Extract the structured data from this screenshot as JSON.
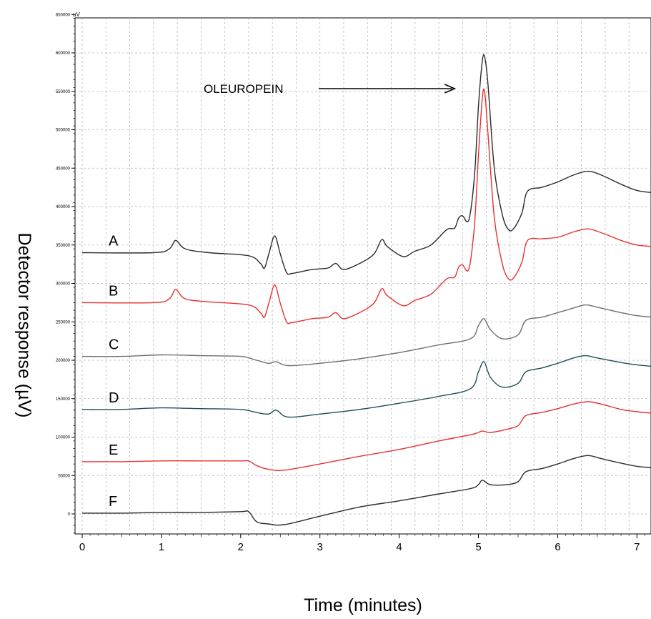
{
  "chart_data": {
    "type": "line",
    "ylabel": "Detector response (µV)",
    "xlabel": "Time (minutes)",
    "y_unit": "uV",
    "xlim": [
      0,
      7.2
    ],
    "ylim": [
      -30000,
      650000
    ],
    "x_ticks": [
      0,
      1,
      2,
      3,
      4,
      5,
      6,
      7
    ],
    "y_ticks": [
      0,
      50000,
      100000,
      150000,
      200000,
      250000,
      300000,
      350000,
      400000,
      450000,
      500000,
      550000,
      600000,
      650000
    ],
    "grid": true,
    "annotation": {
      "text": "OLEUROPEIN",
      "arrow_to_x": 4.7
    },
    "series": [
      {
        "name": "A",
        "color": "#2b2b2b",
        "x": [
          0,
          0.9,
          1.1,
          1.18,
          1.3,
          1.6,
          2.1,
          2.25,
          2.3,
          2.36,
          2.43,
          2.5,
          2.58,
          2.65,
          2.9,
          3.1,
          3.2,
          3.3,
          3.5,
          3.68,
          3.78,
          3.85,
          4.05,
          4.2,
          4.4,
          4.6,
          4.7,
          4.75,
          4.8,
          4.88,
          4.95,
          5.0,
          5.05,
          5.08,
          5.12,
          5.2,
          5.3,
          5.38,
          5.45,
          5.55,
          5.62,
          5.8,
          6.0,
          6.2,
          6.38,
          6.55,
          6.8,
          7.0,
          7.2
        ],
        "y": [
          340000,
          340000,
          345000,
          356000,
          345000,
          340000,
          336000,
          326000,
          320000,
          340000,
          362000,
          338000,
          314000,
          313000,
          318000,
          320000,
          326000,
          318000,
          326000,
          338000,
          357000,
          348000,
          335000,
          342000,
          350000,
          370000,
          372000,
          385000,
          388000,
          383000,
          440000,
          530000,
          590000,
          594000,
          560000,
          450000,
          390000,
          370000,
          372000,
          392000,
          420000,
          425000,
          432000,
          441000,
          446000,
          441000,
          429000,
          421000,
          418000
        ]
      },
      {
        "name": "B",
        "color": "#e8302f",
        "x": [
          0,
          0.9,
          1.1,
          1.18,
          1.3,
          1.6,
          2.1,
          2.25,
          2.3,
          2.36,
          2.43,
          2.5,
          2.58,
          2.65,
          2.9,
          3.1,
          3.2,
          3.3,
          3.5,
          3.68,
          3.78,
          3.85,
          4.05,
          4.2,
          4.4,
          4.6,
          4.7,
          4.75,
          4.8,
          4.88,
          4.95,
          5.0,
          5.05,
          5.08,
          5.12,
          5.2,
          5.3,
          5.38,
          5.45,
          5.55,
          5.62,
          5.8,
          6.0,
          6.2,
          6.38,
          6.55,
          6.8,
          7.0,
          7.2
        ],
        "y": [
          275000,
          275000,
          280000,
          292000,
          280000,
          276000,
          272000,
          262000,
          256000,
          276000,
          298000,
          274000,
          250000,
          249000,
          254000,
          256000,
          262000,
          254000,
          262000,
          274000,
          293000,
          284000,
          271000,
          278000,
          286000,
          306000,
          308000,
          321000,
          324000,
          319000,
          376000,
          466000,
          542000,
          548000,
          496000,
          386000,
          326000,
          306000,
          308000,
          328000,
          356000,
          358000,
          360000,
          367000,
          371000,
          366000,
          356000,
          350000,
          348000
        ]
      },
      {
        "name": "C",
        "color": "#6e6e6e",
        "x": [
          0,
          0.5,
          1.0,
          1.5,
          2.0,
          2.2,
          2.35,
          2.45,
          2.6,
          3.0,
          3.5,
          4.0,
          4.5,
          4.9,
          5.0,
          5.07,
          5.15,
          5.3,
          5.5,
          5.6,
          5.8,
          6.0,
          6.2,
          6.35,
          6.5,
          6.8,
          7.0,
          7.2
        ],
        "y": [
          205000,
          205000,
          207000,
          206000,
          205000,
          200000,
          196000,
          198000,
          193000,
          196000,
          202000,
          210000,
          220000,
          228000,
          245000,
          254000,
          240000,
          228000,
          233000,
          252000,
          256000,
          262000,
          268000,
          272000,
          269000,
          262000,
          258000,
          256000
        ]
      },
      {
        "name": "D",
        "color": "#1e4d52",
        "x": [
          0,
          0.5,
          1.0,
          1.5,
          2.0,
          2.2,
          2.35,
          2.45,
          2.6,
          3.0,
          3.5,
          4.0,
          4.5,
          4.9,
          5.0,
          5.07,
          5.15,
          5.3,
          5.5,
          5.6,
          5.8,
          6.0,
          6.2,
          6.35,
          6.5,
          6.8,
          7.0,
          7.2
        ],
        "y": [
          136000,
          136000,
          138000,
          137000,
          136000,
          132000,
          130000,
          135000,
          126000,
          130000,
          136000,
          144000,
          153000,
          163000,
          185000,
          198000,
          178000,
          165000,
          170000,
          185000,
          190000,
          196000,
          203000,
          206000,
          203000,
          197000,
          194000,
          192000
        ]
      },
      {
        "name": "E",
        "color": "#e8302f",
        "x": [
          0,
          0.5,
          1.0,
          1.5,
          2.0,
          2.1,
          2.2,
          2.35,
          2.55,
          3.0,
          3.5,
          4.0,
          4.5,
          4.9,
          5.0,
          5.05,
          5.15,
          5.35,
          5.5,
          5.6,
          5.8,
          6.0,
          6.2,
          6.38,
          6.55,
          6.8,
          7.0,
          7.2
        ],
        "y": [
          68000,
          68000,
          69000,
          69000,
          69000,
          69000,
          63000,
          58000,
          57000,
          65000,
          75000,
          84000,
          95000,
          103000,
          106000,
          108000,
          106000,
          110000,
          115000,
          128000,
          132000,
          137000,
          143000,
          146000,
          143000,
          136000,
          133000,
          131000
        ]
      },
      {
        "name": "F",
        "color": "#2b2b2b",
        "x": [
          0,
          0.5,
          1.0,
          1.5,
          2.0,
          2.1,
          2.2,
          2.35,
          2.55,
          3.0,
          3.5,
          4.0,
          4.5,
          4.9,
          5.0,
          5.05,
          5.15,
          5.35,
          5.5,
          5.6,
          5.8,
          6.0,
          6.2,
          6.38,
          6.55,
          6.8,
          7.0,
          7.2
        ],
        "y": [
          1000,
          1000,
          2000,
          2000,
          3000,
          3000,
          -10000,
          -13000,
          -14000,
          -3000,
          9000,
          17000,
          26000,
          33000,
          38000,
          44000,
          38000,
          38000,
          42000,
          55000,
          59000,
          65000,
          72000,
          76000,
          72000,
          66000,
          62000,
          60000
        ]
      }
    ]
  }
}
